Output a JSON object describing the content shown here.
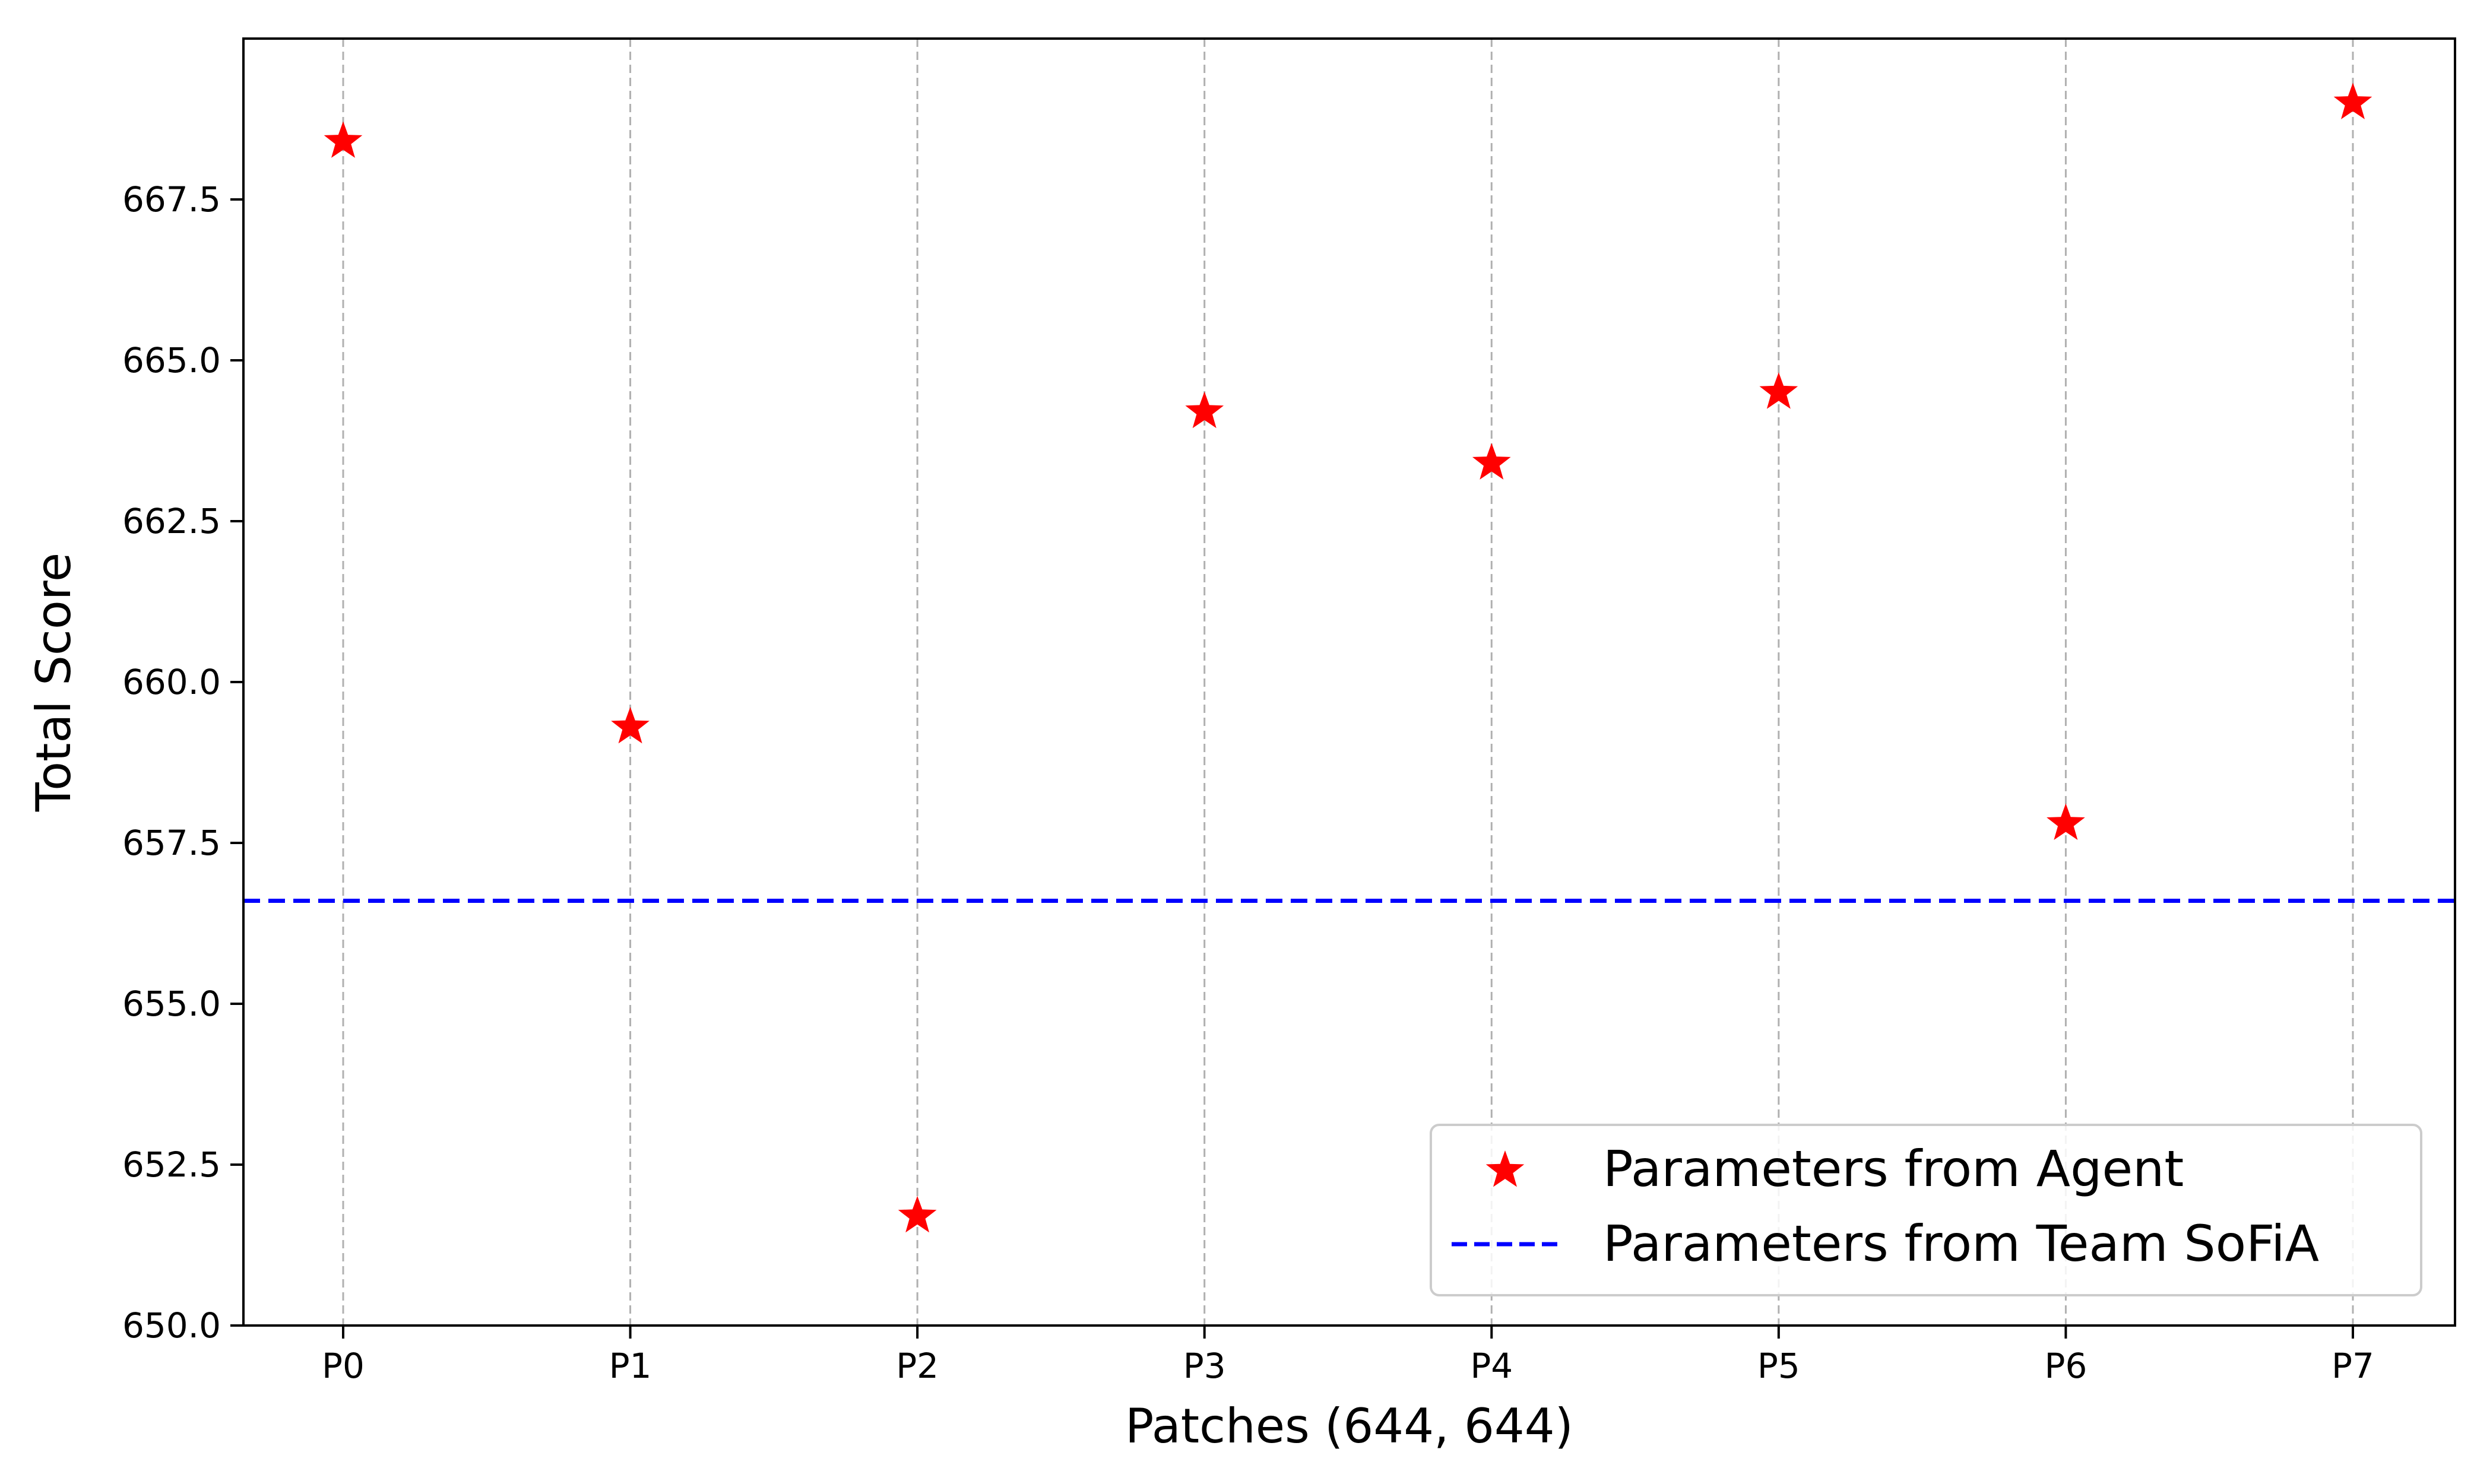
{
  "chart_data": {
    "type": "scatter",
    "title": "",
    "xlabel": "Patches (644, 644)",
    "ylabel": "Total Score",
    "categories": [
      "P0",
      "P1",
      "P2",
      "P3",
      "P4",
      "P5",
      "P6",
      "P7"
    ],
    "ylim": [
      650.0,
      670.0
    ],
    "yticks": [
      650.0,
      652.5,
      655.0,
      657.5,
      660.0,
      662.5,
      665.0,
      667.5
    ],
    "ytick_labels": [
      "650.0",
      "652.5",
      "655.0",
      "657.5",
      "660.0",
      "662.5",
      "665.0",
      "667.5"
    ],
    "grid": "vertical dashed at each category",
    "legend_position": "lower-right",
    "series": [
      {
        "name": "Parameters from Agent",
        "kind": "scatter",
        "marker": "star",
        "color": "#ff0000",
        "values": [
          668.4,
          659.3,
          651.7,
          664.2,
          663.4,
          664.5,
          657.8,
          669.0
        ]
      },
      {
        "name": "Parameters from Team SoFiA",
        "kind": "hline",
        "linestyle": "dashed",
        "color": "#0000ff",
        "value": 656.6
      }
    ]
  }
}
